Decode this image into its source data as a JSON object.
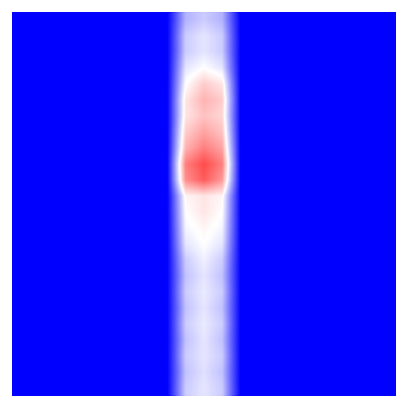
{
  "chart_data": {
    "type": "heatmap",
    "tick_labels": false,
    "color_range": [
      0,
      1
    ],
    "cells": [
      [
        0,
        0,
        0,
        0,
        0,
        0,
        0,
        0,
        0,
        0.35,
        0.4,
        0.35,
        0,
        0,
        0,
        0,
        0,
        0,
        0,
        0,
        0
      ],
      [
        0,
        0,
        0,
        0,
        0,
        0,
        0,
        0,
        0,
        0.4,
        0.45,
        0.4,
        0,
        0,
        0,
        0,
        0,
        0,
        0,
        0,
        0
      ],
      [
        0,
        0,
        0,
        0,
        0,
        0,
        0,
        0,
        0,
        0.4,
        0.45,
        0.4,
        0,
        0,
        0,
        0,
        0,
        0,
        0,
        0,
        0
      ],
      [
        0,
        0,
        0,
        0,
        0,
        0,
        0,
        0,
        0,
        0.45,
        0.5,
        0.45,
        0,
        0,
        0,
        0,
        0,
        0,
        0,
        0,
        0
      ],
      [
        0,
        0,
        0,
        0,
        0,
        0,
        0,
        0,
        0,
        0.5,
        0.6,
        0.55,
        0,
        0,
        0,
        0,
        0,
        0,
        0,
        0,
        0
      ],
      [
        0,
        0,
        0,
        0,
        0,
        0,
        0,
        0,
        0,
        0.55,
        0.65,
        0.6,
        0,
        0,
        0,
        0,
        0,
        0,
        0,
        0,
        0
      ],
      [
        0,
        0,
        0,
        0,
        0,
        0,
        0,
        0,
        0,
        0.55,
        0.62,
        0.58,
        0,
        0,
        0,
        0,
        0,
        0,
        0,
        0,
        0
      ],
      [
        0,
        0,
        0,
        0,
        0,
        0,
        0,
        0,
        0,
        0.6,
        0.68,
        0.62,
        0,
        0,
        0,
        0,
        0,
        0,
        0,
        0,
        0
      ],
      [
        0,
        0,
        0,
        0,
        0,
        0,
        0,
        0,
        0,
        0.65,
        0.75,
        0.68,
        0,
        0,
        0,
        0,
        0,
        0,
        0,
        0,
        0
      ],
      [
        0,
        0,
        0,
        0,
        0,
        0,
        0,
        0,
        0,
        0.75,
        0.85,
        0.75,
        0,
        0,
        0,
        0,
        0,
        0,
        0,
        0,
        0
      ],
      [
        0,
        0,
        0,
        0,
        0,
        0,
        0,
        0,
        0,
        0.72,
        0.82,
        0.7,
        0,
        0,
        0,
        0,
        0,
        0,
        0,
        0,
        0
      ],
      [
        0,
        0,
        0,
        0,
        0,
        0,
        0,
        0,
        0,
        0.52,
        0.55,
        0.52,
        0,
        0,
        0,
        0,
        0,
        0,
        0,
        0,
        0
      ],
      [
        0,
        0,
        0,
        0,
        0,
        0,
        0,
        0,
        0,
        0.5,
        0.55,
        0.5,
        0,
        0,
        0,
        0,
        0,
        0,
        0,
        0,
        0
      ],
      [
        0,
        0,
        0,
        0,
        0,
        0,
        0,
        0,
        0,
        0.48,
        0.52,
        0.48,
        0,
        0,
        0,
        0,
        0,
        0,
        0,
        0,
        0
      ],
      [
        0,
        0,
        0,
        0,
        0,
        0,
        0,
        0,
        0,
        0.45,
        0.5,
        0.45,
        0,
        0,
        0,
        0,
        0,
        0,
        0,
        0,
        0
      ],
      [
        0,
        0,
        0,
        0,
        0,
        0,
        0,
        0,
        0,
        0.4,
        0.47,
        0.4,
        0,
        0,
        0,
        0,
        0,
        0,
        0,
        0,
        0
      ],
      [
        0,
        0,
        0,
        0,
        0,
        0,
        0,
        0,
        0,
        0.38,
        0.45,
        0.38,
        0,
        0,
        0,
        0,
        0,
        0,
        0,
        0,
        0
      ],
      [
        0,
        0,
        0,
        0,
        0,
        0,
        0,
        0,
        0,
        0.4,
        0.46,
        0.4,
        0,
        0,
        0,
        0,
        0,
        0,
        0,
        0,
        0
      ],
      [
        0,
        0,
        0,
        0,
        0,
        0,
        0,
        0,
        0,
        0.38,
        0.45,
        0.38,
        0,
        0,
        0,
        0,
        0,
        0,
        0,
        0,
        0
      ],
      [
        0,
        0,
        0,
        0,
        0,
        0,
        0,
        0,
        0,
        0.4,
        0.46,
        0.4,
        0,
        0,
        0,
        0,
        0,
        0,
        0,
        0,
        0
      ],
      [
        0,
        0,
        0,
        0,
        0,
        0,
        0,
        0,
        0,
        0.38,
        0.45,
        0.38,
        0,
        0,
        0,
        0,
        0,
        0,
        0,
        0,
        0
      ],
      [
        0,
        0,
        0,
        0,
        0,
        0,
        0,
        0,
        0,
        0.4,
        0.45,
        0.4,
        0,
        0,
        0,
        0,
        0,
        0,
        0,
        0,
        0
      ],
      [
        0,
        0,
        0,
        0,
        0,
        0,
        0,
        0,
        0,
        0.38,
        0.44,
        0.38,
        0,
        0,
        0,
        0,
        0,
        0,
        0,
        0,
        0
      ],
      [
        0,
        0,
        0,
        0,
        0,
        0,
        0,
        0,
        0,
        0.4,
        0.45,
        0.4,
        0,
        0,
        0,
        0,
        0,
        0,
        0,
        0,
        0
      ]
    ]
  }
}
